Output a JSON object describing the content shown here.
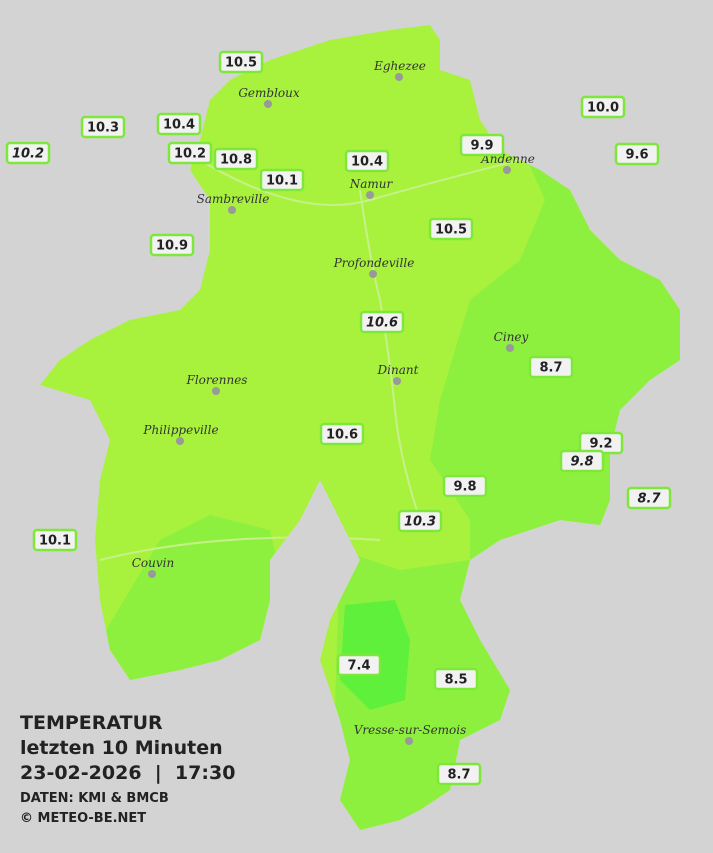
{
  "info": {
    "title": "TEMPERATUR",
    "subtitle": "letzten 10 Minuten",
    "timestamp": "23-02-2026  |  17:30",
    "source": "DATEN: KMI & BMCB",
    "copyright": "© METEO-BE.NET"
  },
  "cities": [
    "Eghezee",
    "Gembloux",
    "Andenne",
    "Namur",
    "Sambreville",
    "Profondeville",
    "Ciney",
    "Dinant",
    "Florennes",
    "Philippeville",
    "Couvin",
    "Vresse-sur-Semois"
  ],
  "stations": [
    {
      "label": "10.5",
      "italic": false
    },
    {
      "label": "10.3",
      "italic": false
    },
    {
      "label": "10.4",
      "italic": false
    },
    {
      "label": "10.2",
      "italic": true
    },
    {
      "label": "10.2",
      "italic": false
    },
    {
      "label": "10.8",
      "italic": false
    },
    {
      "label": "10.1",
      "italic": false
    },
    {
      "label": "10.4",
      "italic": false
    },
    {
      "label": "9.9",
      "italic": false
    },
    {
      "label": "10.0",
      "italic": false
    },
    {
      "label": "9.6",
      "italic": false
    },
    {
      "label": "10.9",
      "italic": false
    },
    {
      "label": "10.5",
      "italic": false
    },
    {
      "label": "10.6",
      "italic": true
    },
    {
      "label": "8.7",
      "italic": false
    },
    {
      "label": "10.6",
      "italic": false
    },
    {
      "label": "9.2",
      "italic": false
    },
    {
      "label": "9.8",
      "italic": true
    },
    {
      "label": "9.8",
      "italic": false
    },
    {
      "label": "8.7",
      "italic": true
    },
    {
      "label": "10.3",
      "italic": true
    },
    {
      "label": "10.1",
      "italic": false
    },
    {
      "label": "7.4",
      "italic": false
    },
    {
      "label": "8.5",
      "italic": false
    },
    {
      "label": "8.7",
      "italic": false
    }
  ]
}
